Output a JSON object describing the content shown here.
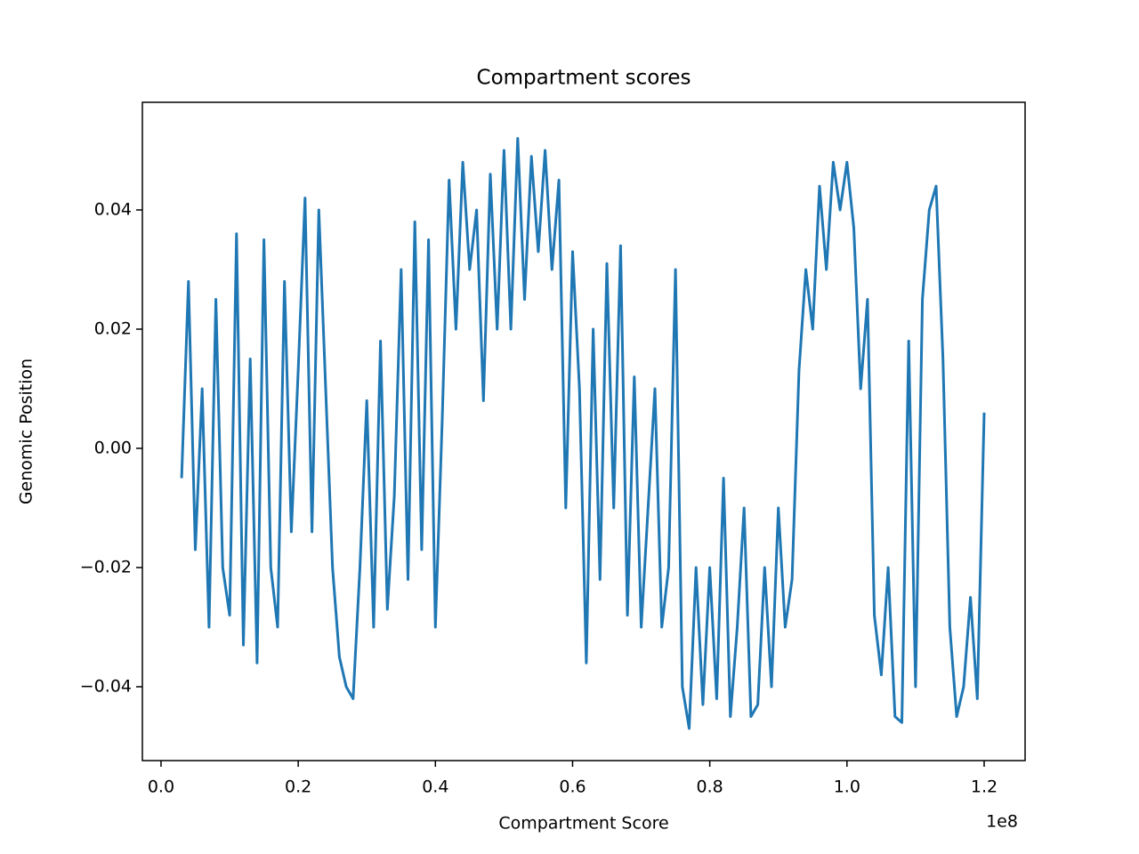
{
  "chart_data": {
    "type": "line",
    "title": "Compartment scores",
    "x_label": "Compartment Score",
    "y_label": "Genomic Position",
    "x_offset_label": "1e8",
    "xlim": [
      -2720000,
      125970000
    ],
    "ylim": [
      -0.05239,
      0.05806
    ],
    "xticks": [
      {
        "value": 0,
        "label": "0.0"
      },
      {
        "value": 20000000,
        "label": "0.2"
      },
      {
        "value": 40000000,
        "label": "0.4"
      },
      {
        "value": 60000000,
        "label": "0.6"
      },
      {
        "value": 80000000,
        "label": "0.8"
      },
      {
        "value": 100000000,
        "label": "1.0"
      },
      {
        "value": 120000000,
        "label": "1.2"
      }
    ],
    "yticks": [
      {
        "value": -0.04,
        "label": "−0.04"
      },
      {
        "value": -0.02,
        "label": "−0.02"
      },
      {
        "value": 0,
        "label": "0.00"
      },
      0.02,
      0.04
    ],
    "x": [
      3000000,
      4000000,
      5000000,
      6000000,
      7000000,
      8000000,
      9000000,
      10000000,
      11000000,
      12000000,
      13000000,
      14000000,
      15000000,
      16000000,
      17000000,
      18000000,
      19000000,
      20000000,
      21000000,
      22000000,
      23000000,
      24000000,
      25000000,
      26000000,
      27000000,
      28000000,
      29000000,
      30000000,
      31000000,
      32000000,
      33000000,
      34000000,
      35000000,
      36000000,
      37000000,
      38000000,
      39000000,
      40000000,
      41000000,
      42000000,
      43000000,
      44000000,
      45000000,
      46000000,
      47000000,
      48000000,
      49000000,
      50000000,
      51000000,
      52000000,
      53000000,
      54000000,
      55000000,
      56000000,
      57000000,
      58000000,
      59000000,
      60000000,
      61000000,
      62000000,
      63000000,
      64000000,
      65000000,
      66000000,
      67000000,
      68000000,
      69000000,
      70000000,
      71000000,
      72000000,
      73000000,
      74000000,
      75000000,
      76000000,
      77000000,
      78000000,
      79000000,
      80000000,
      81000000,
      82000000,
      83000000,
      84000000,
      85000000,
      86000000,
      87000000,
      88000000,
      89000000,
      90000000,
      91000000,
      92000000,
      93000000,
      94000000,
      95000000,
      96000000,
      97000000,
      98000000,
      99000000,
      100000000,
      101000000,
      102000000,
      103000000,
      104000000,
      105000000,
      106000000,
      107000000,
      108000000,
      109000000,
      110000000,
      111000000,
      112000000,
      113000000,
      114000000,
      115000000,
      116000000,
      117000000,
      118000000,
      119000000,
      120000000
    ],
    "series": [
      {
        "color": "#1f77b4",
        "values": [
          -0.005,
          0.028,
          -0.017,
          0.01,
          -0.03,
          0.025,
          -0.02,
          -0.028,
          0.036,
          -0.033,
          0.015,
          -0.036,
          0.035,
          -0.02,
          -0.03,
          0.028,
          -0.014,
          0.013,
          0.042,
          -0.014,
          0.04,
          0.01,
          -0.02,
          -0.035,
          -0.04,
          -0.042,
          -0.02,
          0.008,
          -0.03,
          0.018,
          -0.027,
          -0.008,
          0.03,
          -0.022,
          0.038,
          -0.017,
          0.035,
          -0.03,
          0.005,
          0.045,
          0.02,
          0.048,
          0.03,
          0.04,
          0.008,
          0.046,
          0.02,
          0.05,
          0.02,
          0.052,
          0.025,
          0.049,
          0.033,
          0.05,
          0.03,
          0.045,
          -0.01,
          0.033,
          0.01,
          -0.036,
          0.02,
          -0.022,
          0.031,
          -0.01,
          0.034,
          -0.028,
          0.012,
          -0.03,
          -0.01,
          0.01,
          -0.03,
          -0.02,
          0.03,
          -0.04,
          -0.047,
          -0.02,
          -0.043,
          -0.02,
          -0.042,
          -0.005,
          -0.045,
          -0.03,
          -0.01,
          -0.045,
          -0.043,
          -0.02,
          -0.04,
          -0.01,
          -0.03,
          -0.022,
          0.013,
          0.03,
          0.02,
          0.044,
          0.03,
          0.048,
          0.04,
          0.048,
          0.037,
          0.01,
          0.025,
          -0.028,
          -0.038,
          -0.02,
          -0.045,
          -0.046,
          0.018,
          -0.04,
          0.025,
          0.04,
          0.044,
          0.015,
          -0.03,
          -0.045,
          -0.04,
          -0.025,
          -0.042,
          0.006
        ]
      }
    ]
  }
}
